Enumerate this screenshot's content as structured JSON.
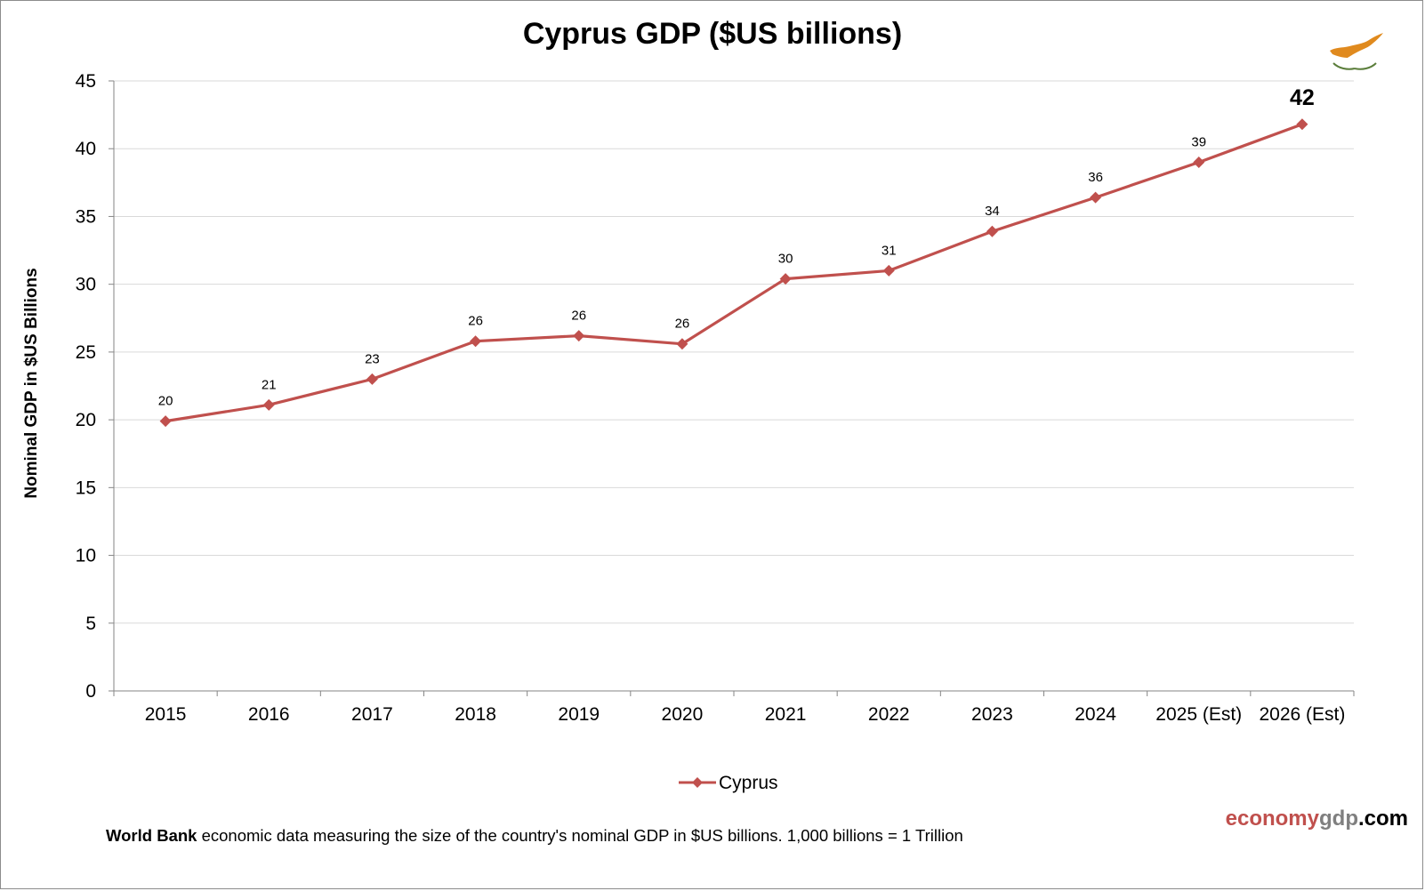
{
  "colors": {
    "series": "#c0504d",
    "grid": "#d9d9d9",
    "axis": "#868686",
    "brand_primary": "#c0504d",
    "brand_secondary": "#7f7f7f",
    "flag_map": "#e08a1e",
    "flag_branch": "#5a7d3a"
  },
  "chart_data": {
    "type": "line",
    "title": "Cyprus GDP ($US billions)",
    "xlabel": "",
    "ylabel": "Nominal GDP in $US Billions",
    "categories": [
      "2015",
      "2016",
      "2017",
      "2018",
      "2019",
      "2020",
      "2021",
      "2022",
      "2023",
      "2024",
      "2025 (Est)",
      "2026 (Est)"
    ],
    "series": [
      {
        "name": "Cyprus",
        "values": [
          19.9,
          21.1,
          23.0,
          25.8,
          26.2,
          25.6,
          30.4,
          31.0,
          33.9,
          36.4,
          39.0,
          41.8
        ],
        "labels": [
          "20",
          "21",
          "23",
          "26",
          "26",
          "26",
          "30",
          "31",
          "34",
          "36",
          "39",
          "42"
        ]
      }
    ],
    "ylim": [
      0,
      45
    ],
    "yticks": [
      0,
      5,
      10,
      15,
      20,
      25,
      30,
      35,
      40,
      45
    ],
    "grid": true,
    "legend_position": "bottom",
    "marker": "diamond"
  },
  "footer": {
    "source_bold": "World Bank",
    "source_text": " economic data  measuring  the size of the country's nominal  GDP in $US billions.  1,000 billions = 1 Trillion"
  },
  "brand": {
    "part1": "economy",
    "part2": "gdp",
    "part3": ".com"
  },
  "flag_icon": "cyprus-flag-icon"
}
